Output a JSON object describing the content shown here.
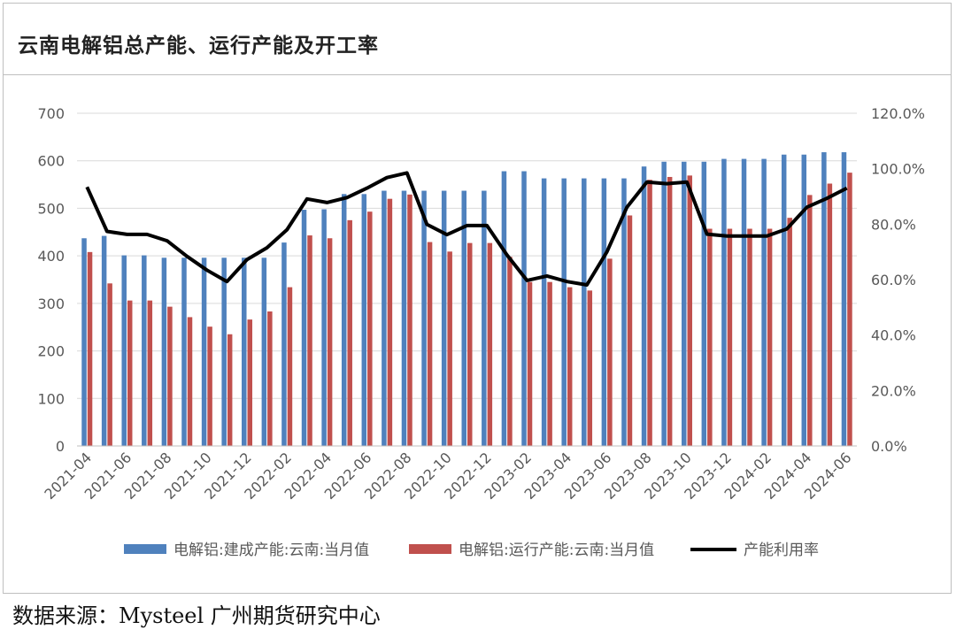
{
  "title": "云南电解铝总产能、运行产能及开工率",
  "source_text": "数据来源：Mysteel 广州期货研究中心",
  "chart_data": {
    "type": "bar",
    "title": "云南电解铝总产能、运行产能及开工率",
    "categories": [
      "2021-04",
      "2021-05",
      "2021-06",
      "2021-07",
      "2021-08",
      "2021-09",
      "2021-10",
      "2021-11",
      "2021-12",
      "2022-01",
      "2022-02",
      "2022-03",
      "2022-04",
      "2022-05",
      "2022-06",
      "2022-07",
      "2022-08",
      "2022-09",
      "2022-10",
      "2022-11",
      "2022-12",
      "2023-01",
      "2023-02",
      "2023-03",
      "2023-04",
      "2023-05",
      "2023-06",
      "2023-07",
      "2023-08",
      "2023-09",
      "2023-10",
      "2023-11",
      "2023-12",
      "2024-01",
      "2024-02",
      "2024-03",
      "2024-04",
      "2024-05",
      "2024-06"
    ],
    "x_tick_labels": [
      "2021-04",
      "2021-06",
      "2021-08",
      "2021-10",
      "2021-12",
      "2022-02",
      "2022-04",
      "2022-06",
      "2022-08",
      "2022-10",
      "2022-12",
      "2023-02",
      "2023-04",
      "2023-06",
      "2023-08",
      "2023-10",
      "2023-12",
      "2024-02",
      "2024-04",
      "2024-06"
    ],
    "series": [
      {
        "name": "电解铝:建成产能:云南:当月值",
        "axis": "left",
        "color": "#4f81bd",
        "values": [
          437,
          442,
          401,
          401,
          396,
          396,
          396,
          396,
          396,
          396,
          428,
          497,
          498,
          530,
          530,
          537,
          537,
          537,
          537,
          537,
          537,
          578,
          578,
          563,
          563,
          563,
          563,
          563,
          588,
          598,
          598,
          598,
          604,
          604,
          604,
          613,
          613,
          618,
          618
        ]
      },
      {
        "name": "电解铝:运行产能:云南:当月值",
        "axis": "left",
        "color": "#c0504d",
        "values": [
          408,
          342,
          306,
          306,
          293,
          271,
          251,
          235,
          266,
          283,
          334,
          443,
          437,
          475,
          493,
          520,
          529,
          429,
          409,
          427,
          427,
          398,
          345,
          345,
          334,
          327,
          394,
          485,
          560,
          566,
          569,
          457,
          457,
          457,
          457,
          480,
          528,
          552,
          575
        ]
      },
      {
        "name": "产能利用率",
        "axis": "right",
        "type": "line",
        "color": "#000000",
        "values": [
          93.4,
          77.4,
          76.3,
          76.3,
          74.0,
          68.4,
          63.4,
          59.3,
          67.2,
          71.5,
          78.0,
          89.1,
          87.8,
          89.6,
          93.0,
          96.8,
          98.5,
          79.9,
          76.2,
          79.5,
          79.5,
          68.9,
          59.7,
          61.3,
          59.3,
          58.1,
          70.0,
          86.1,
          95.2,
          94.6,
          95.2,
          76.4,
          75.7,
          75.7,
          75.7,
          78.3,
          86.1,
          89.3,
          93.0
        ]
      }
    ],
    "y_left": {
      "min": 0,
      "max": 700,
      "ticks": [
        0,
        100,
        200,
        300,
        400,
        500,
        600,
        700
      ]
    },
    "y_right": {
      "min": 0,
      "max": 120,
      "ticks": [
        "0.0%",
        "20.0%",
        "40.0%",
        "60.0%",
        "80.0%",
        "100.0%",
        "120.0%"
      ]
    },
    "grid": true,
    "legend_position": "bottom"
  }
}
